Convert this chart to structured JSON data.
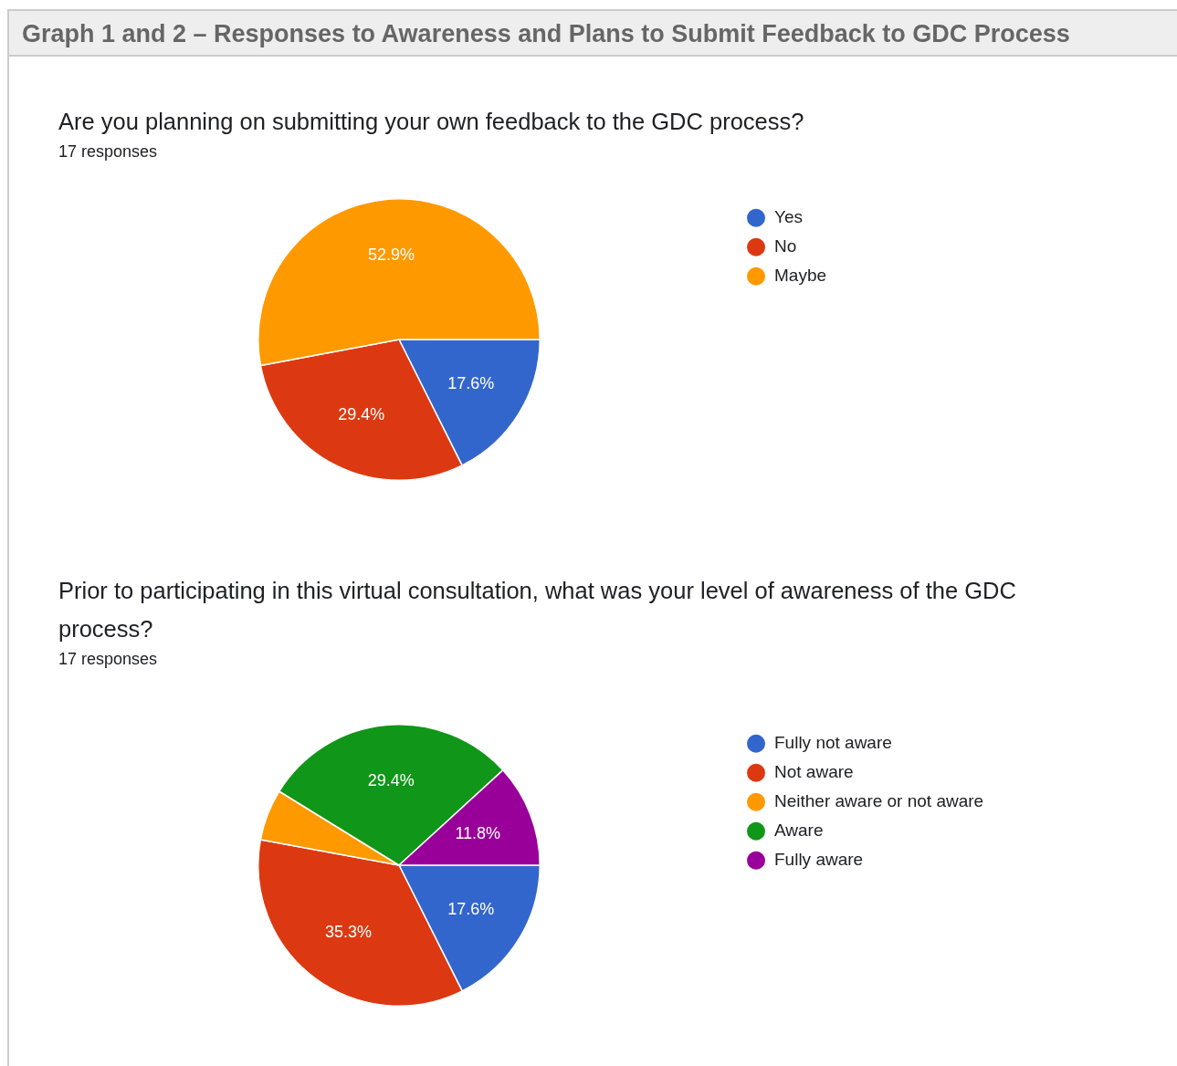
{
  "chart_data": [
    {
      "type": "pie",
      "title": "Are you planning on submitting your own feedback to the GDC process?",
      "subtitle": "17 responses",
      "annotations": [
        "Graph 1 and 2 – Responses to Awareness and Plans to Submit Feedback to GDC Process"
      ],
      "categories": [
        "Yes",
        "No",
        "Maybe"
      ],
      "values": [
        17.6,
        29.4,
        52.9
      ],
      "colors": [
        "#3366cc",
        "#dc3912",
        "#ff9900"
      ],
      "value_labels": [
        "17.6%",
        "29.4%",
        "52.9%"
      ],
      "legend": "right"
    },
    {
      "type": "pie",
      "title": "Prior to participating in this virtual consultation, what was your level of awareness of the GDC process?",
      "subtitle": "17 responses",
      "categories": [
        "Fully not aware",
        "Not aware",
        "Neither aware or not aware",
        "Aware",
        "Fully aware"
      ],
      "values": [
        17.6,
        35.3,
        5.9,
        29.4,
        11.8
      ],
      "colors": [
        "#3366cc",
        "#dc3912",
        "#ff9900",
        "#109618",
        "#990099"
      ],
      "value_labels": [
        "17.6%",
        "35.3%",
        null,
        "29.4%",
        "11.8%"
      ],
      "legend": "right"
    }
  ]
}
